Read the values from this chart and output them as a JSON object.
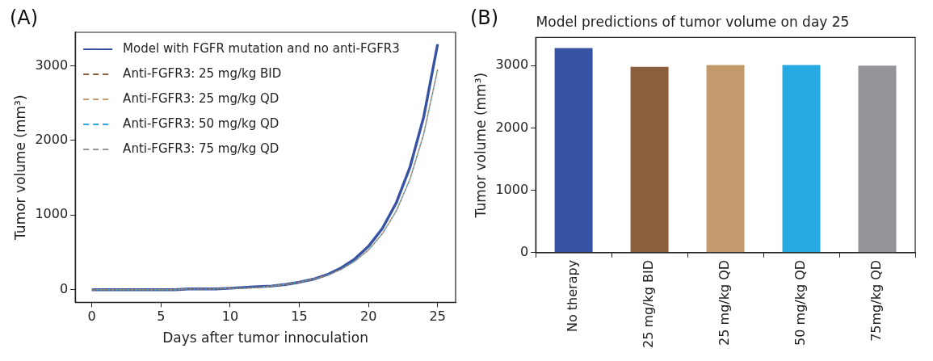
{
  "chart_data": [
    {
      "type": "line",
      "xlabel": "Days after tumor innoculation",
      "ylabel": "Tumor volume (mm³)",
      "annotations": [
        "(A)"
      ],
      "xlim": [
        -1.2,
        26.3
      ],
      "ylim": [
        -170,
        3450
      ],
      "xticks": [
        0,
        5,
        10,
        15,
        20,
        25
      ],
      "yticks": [
        0,
        1000,
        2000,
        3000
      ],
      "grid": false,
      "legend": "top left",
      "marker": "none",
      "x": [
        0,
        1,
        2,
        3,
        4,
        5,
        6,
        7,
        8,
        9,
        10,
        11,
        12,
        13,
        14,
        15,
        16,
        17,
        18,
        19,
        20,
        21,
        22,
        23,
        24,
        25
      ],
      "series": [
        {
          "name": "Model with FGFR mutation and no anti-FGFR3",
          "color": "#3953a4",
          "line_style": "solid",
          "values": [
            0,
            0,
            0,
            0,
            0,
            0,
            0,
            10,
            10,
            10,
            20,
            30,
            40,
            50,
            70,
            100,
            140,
            200,
            290,
            410,
            580,
            820,
            1160,
            1640,
            2320,
            3290
          ]
        },
        {
          "name": "Anti-FGFR3: 25 mg/kg BID",
          "color": "#8b5e3c",
          "line_style": "dashed",
          "values": [
            0,
            0,
            0,
            0,
            0,
            0,
            0,
            10,
            10,
            10,
            20,
            20,
            30,
            50,
            70,
            100,
            140,
            190,
            270,
            380,
            530,
            750,
            1050,
            1480,
            2090,
            2950
          ]
        },
        {
          "name": "Anti-FGFR3: 25 mg/kg QD",
          "color": "#c4996b",
          "line_style": "dashed",
          "values": [
            0,
            0,
            0,
            0,
            0,
            0,
            0,
            10,
            10,
            10,
            20,
            20,
            30,
            50,
            70,
            100,
            140,
            190,
            270,
            380,
            530,
            750,
            1050,
            1480,
            2090,
            2950
          ]
        },
        {
          "name": "Anti-FGFR3: 50 mg/kg QD",
          "color": "#27aae1",
          "line_style": "dashed",
          "values": [
            0,
            0,
            0,
            0,
            0,
            0,
            0,
            10,
            10,
            10,
            20,
            20,
            30,
            50,
            70,
            100,
            140,
            190,
            270,
            380,
            530,
            750,
            1050,
            1480,
            2090,
            2950
          ]
        },
        {
          "name": "Anti-FGFR3: 75 mg/kg QD",
          "color": "#939598",
          "line_style": "dashed",
          "values": [
            0,
            0,
            0,
            0,
            0,
            0,
            0,
            10,
            10,
            10,
            20,
            20,
            30,
            50,
            70,
            100,
            140,
            190,
            270,
            380,
            530,
            750,
            1050,
            1480,
            2090,
            2950
          ]
        }
      ]
    },
    {
      "type": "bar",
      "title": "Model predictions of tumor volume on day 25",
      "ylabel": "Tumor volume (mm³)",
      "annotations": [
        "(B)"
      ],
      "categories": [
        "No therapy",
        "25 mg/kg BID",
        "25 mg/kg QD",
        "50 mg/kg QD",
        "75mg/kg QD"
      ],
      "values": [
        3280,
        2980,
        3010,
        3010,
        3000
      ],
      "colors": [
        "#3953a4",
        "#8b5e3c",
        "#c4996b",
        "#27aae1",
        "#939598"
      ],
      "ylim": [
        0,
        3450
      ],
      "yticks": [
        0,
        1000,
        2000,
        3000
      ],
      "grid": false,
      "legend": false
    }
  ]
}
